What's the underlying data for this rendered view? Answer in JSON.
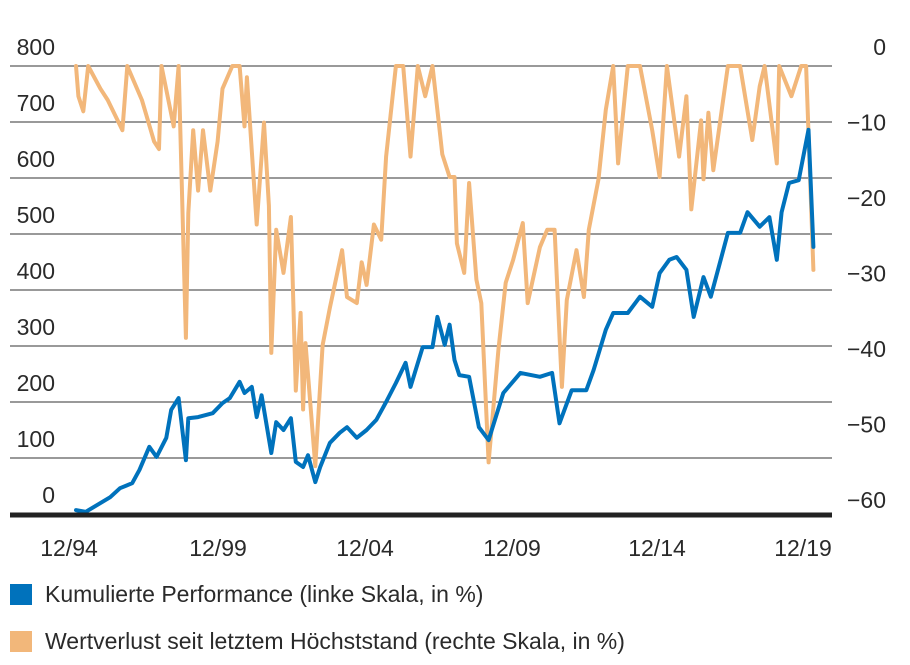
{
  "chart_data": {
    "type": "line",
    "title": "",
    "xlabel": "",
    "ylabel_left": "",
    "ylabel_right": "",
    "grid": true,
    "legend_placement": "bottom",
    "x_ticks": [
      "12/94",
      "12/99",
      "12/04",
      "12/09",
      "12/14",
      "12/19"
    ],
    "y_left": {
      "ticks": [
        0,
        100,
        200,
        300,
        400,
        500,
        600,
        700,
        800
      ],
      "range": [
        0,
        800
      ]
    },
    "y_right": {
      "ticks": [
        0,
        -10,
        -20,
        -30,
        -40,
        -50,
        -60
      ],
      "range": [
        -60,
        0
      ]
    },
    "colors": {
      "performance": "#0072BC",
      "drawdown": "#F2B77A",
      "axis": "#222222",
      "grid": "#333333"
    },
    "series": [
      {
        "name": "Kumulierte Performance (linke Skala, in %)",
        "axis": "left",
        "points": [
          [
            "1995-01",
            7
          ],
          [
            "1995-05",
            4
          ],
          [
            "1996-03",
            30
          ],
          [
            "1996-07",
            46
          ],
          [
            "1996-12",
            55
          ],
          [
            "1997-03",
            79
          ],
          [
            "1997-07",
            120
          ],
          [
            "1997-10",
            102
          ],
          [
            "1998-02",
            136
          ],
          [
            "1998-04",
            186
          ],
          [
            "1998-07",
            207
          ],
          [
            "1998-10",
            96
          ],
          [
            "1998-11",
            171
          ],
          [
            "1999-03",
            173
          ],
          [
            "1999-09",
            180
          ],
          [
            "2000-01",
            198
          ],
          [
            "2000-04",
            207
          ],
          [
            "2000-08",
            236
          ],
          [
            "2000-10",
            216
          ],
          [
            "2001-01",
            227
          ],
          [
            "2001-03",
            173
          ],
          [
            "2001-05",
            212
          ],
          [
            "2001-09",
            109
          ],
          [
            "2001-11",
            164
          ],
          [
            "2002-02",
            150
          ],
          [
            "2002-05",
            171
          ],
          [
            "2002-07",
            93
          ],
          [
            "2002-10",
            84
          ],
          [
            "2002-12",
            105
          ],
          [
            "2003-03",
            57
          ],
          [
            "2003-05",
            84
          ],
          [
            "2003-09",
            127
          ],
          [
            "2004-01",
            145
          ],
          [
            "2004-04",
            155
          ],
          [
            "2004-08",
            136
          ],
          [
            "2004-12",
            150
          ],
          [
            "2005-04",
            168
          ],
          [
            "2005-08",
            200
          ],
          [
            "2005-12",
            234
          ],
          [
            "2006-04",
            270
          ],
          [
            "2006-06",
            227
          ],
          [
            "2006-11",
            298
          ],
          [
            "2007-03",
            298
          ],
          [
            "2007-05",
            352
          ],
          [
            "2007-08",
            302
          ],
          [
            "2007-10",
            338
          ],
          [
            "2007-12",
            275
          ],
          [
            "2008-02",
            248
          ],
          [
            "2008-06",
            245
          ],
          [
            "2008-10",
            155
          ],
          [
            "2009-02",
            132
          ],
          [
            "2009-08",
            216
          ],
          [
            "2010-03",
            252
          ],
          [
            "2010-11",
            245
          ],
          [
            "2011-04",
            252
          ],
          [
            "2011-07",
            162
          ],
          [
            "2011-12",
            221
          ],
          [
            "2012-06",
            221
          ],
          [
            "2012-09",
            257
          ],
          [
            "2013-02",
            329
          ],
          [
            "2013-05",
            359
          ],
          [
            "2013-11",
            359
          ],
          [
            "2014-04",
            388
          ],
          [
            "2014-09",
            370
          ],
          [
            "2014-12",
            430
          ],
          [
            "2015-04",
            454
          ],
          [
            "2015-07",
            459
          ],
          [
            "2015-11",
            436
          ],
          [
            "2016-02",
            352
          ],
          [
            "2016-06",
            423
          ],
          [
            "2016-09",
            388
          ],
          [
            "2017-04",
            502
          ],
          [
            "2017-09",
            502
          ],
          [
            "2017-12",
            539
          ],
          [
            "2018-05",
            513
          ],
          [
            "2018-09",
            530
          ],
          [
            "2018-12",
            454
          ],
          [
            "2019-02",
            539
          ],
          [
            "2019-05",
            591
          ],
          [
            "2019-09",
            596
          ],
          [
            "2020-01",
            686
          ],
          [
            "2020-03",
            477
          ]
        ]
      },
      {
        "name": "Wertverlust seit letztem Höchststand (rechte Skala, in %)",
        "axis": "right",
        "points": [
          [
            "1995-01",
            0
          ],
          [
            "1995-02",
            -4
          ],
          [
            "1995-04",
            -6
          ],
          [
            "1995-06",
            0
          ],
          [
            "1995-11",
            -3
          ],
          [
            "1996-02",
            -4.5
          ],
          [
            "1996-08",
            -8.5
          ],
          [
            "1996-10",
            0
          ],
          [
            "1997-04",
            -4.5
          ],
          [
            "1997-09",
            -10
          ],
          [
            "1997-11",
            -11
          ],
          [
            "1997-12",
            0
          ],
          [
            "1998-05",
            -8
          ],
          [
            "1998-07",
            0
          ],
          [
            "1998-10",
            -36
          ],
          [
            "1998-11",
            -19.5
          ],
          [
            "1999-01",
            -8.5
          ],
          [
            "1999-03",
            -16.5
          ],
          [
            "1999-05",
            -8.5
          ],
          [
            "1999-08",
            -16.5
          ],
          [
            "1999-11",
            -10
          ],
          [
            "2000-01",
            -3
          ],
          [
            "2000-05",
            0
          ],
          [
            "2000-08",
            0
          ],
          [
            "2000-10",
            -8
          ],
          [
            "2000-11",
            -1.5
          ],
          [
            "2001-03",
            -21
          ],
          [
            "2001-06",
            -7.5
          ],
          [
            "2001-08",
            -18.5
          ],
          [
            "2001-09",
            -38
          ],
          [
            "2001-11",
            -21.7
          ],
          [
            "2002-02",
            -27.4
          ],
          [
            "2002-05",
            -20
          ],
          [
            "2002-07",
            -43
          ],
          [
            "2002-09",
            -32.7
          ],
          [
            "2002-10",
            -45.5
          ],
          [
            "2002-11",
            -36.7
          ],
          [
            "2003-03",
            -53
          ],
          [
            "2003-06",
            -37
          ],
          [
            "2003-09",
            -32
          ],
          [
            "2004-02",
            -24.4
          ],
          [
            "2004-04",
            -30.6
          ],
          [
            "2004-08",
            -31.4
          ],
          [
            "2004-10",
            -26
          ],
          [
            "2004-12",
            -29
          ],
          [
            "2005-03",
            -21
          ],
          [
            "2005-06",
            -23
          ],
          [
            "2005-08",
            -12
          ],
          [
            "2005-12",
            0
          ],
          [
            "2006-03",
            0
          ],
          [
            "2006-06",
            -12
          ],
          [
            "2006-09",
            0
          ],
          [
            "2006-12",
            -4
          ],
          [
            "2007-03",
            0
          ],
          [
            "2007-07",
            -11.7
          ],
          [
            "2007-10",
            -14.7
          ],
          [
            "2007-12",
            -14.7
          ],
          [
            "2008-01",
            -23.5
          ],
          [
            "2008-04",
            -27.4
          ],
          [
            "2008-06",
            -15.5
          ],
          [
            "2008-09",
            -28.3
          ],
          [
            "2008-11",
            -31.4
          ],
          [
            "2009-02",
            -52.5
          ],
          [
            "2009-06",
            -37.6
          ],
          [
            "2009-09",
            -28.7
          ],
          [
            "2009-12",
            -25.7
          ],
          [
            "2010-04",
            -20.8
          ],
          [
            "2010-06",
            -31.4
          ],
          [
            "2010-11",
            -24
          ],
          [
            "2011-02",
            -21.7
          ],
          [
            "2011-05",
            -21.7
          ],
          [
            "2011-08",
            -42.5
          ],
          [
            "2011-10",
            -31
          ],
          [
            "2012-02",
            -24.4
          ],
          [
            "2012-05",
            -30.6
          ],
          [
            "2012-07",
            -21.7
          ],
          [
            "2012-11",
            -15
          ],
          [
            "2013-02",
            -5.8
          ],
          [
            "2013-05",
            0
          ],
          [
            "2013-07",
            -12.9
          ],
          [
            "2013-11",
            0
          ],
          [
            "2014-04",
            0
          ],
          [
            "2014-09",
            -8.5
          ],
          [
            "2014-12",
            -14.7
          ],
          [
            "2015-03",
            0
          ],
          [
            "2015-08",
            -12
          ],
          [
            "2015-11",
            -4
          ],
          [
            "2016-01",
            -19
          ],
          [
            "2016-05",
            -7.2
          ],
          [
            "2016-06",
            -15
          ],
          [
            "2016-08",
            -6.2
          ],
          [
            "2016-10",
            -13.8
          ],
          [
            "2017-04",
            0
          ],
          [
            "2017-09",
            0
          ],
          [
            "2018-02",
            -9.8
          ],
          [
            "2018-05",
            -2.7
          ],
          [
            "2018-07",
            0
          ],
          [
            "2018-12",
            -12.9
          ],
          [
            "2019-01",
            0
          ],
          [
            "2019-06",
            -4
          ],
          [
            "2019-10",
            0
          ],
          [
            "2019-12",
            0
          ],
          [
            "2020-03",
            -27
          ]
        ]
      }
    ]
  }
}
